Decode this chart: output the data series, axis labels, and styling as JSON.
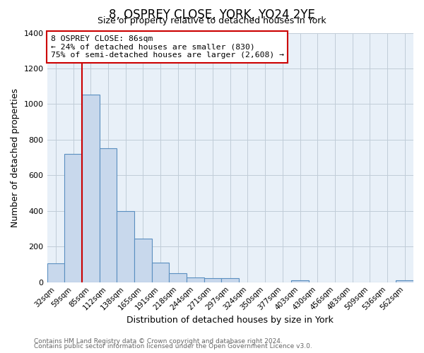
{
  "title": "8, OSPREY CLOSE, YORK, YO24 2YE",
  "subtitle": "Size of property relative to detached houses in York",
  "xlabel": "Distribution of detached houses by size in York",
  "ylabel": "Number of detached properties",
  "bar_labels": [
    "32sqm",
    "59sqm",
    "85sqm",
    "112sqm",
    "138sqm",
    "165sqm",
    "191sqm",
    "218sqm",
    "244sqm",
    "271sqm",
    "297sqm",
    "324sqm",
    "350sqm",
    "377sqm",
    "403sqm",
    "430sqm",
    "456sqm",
    "483sqm",
    "509sqm",
    "536sqm",
    "562sqm"
  ],
  "bar_values": [
    105,
    720,
    1055,
    750,
    400,
    245,
    110,
    50,
    28,
    22,
    22,
    0,
    0,
    0,
    10,
    0,
    0,
    0,
    0,
    0,
    10
  ],
  "bar_color": "#c8d8ec",
  "bar_edge_color": "#5a8fc0",
  "ylim": [
    0,
    1400
  ],
  "yticks": [
    0,
    200,
    400,
    600,
    800,
    1000,
    1200,
    1400
  ],
  "vline_color": "#cc0000",
  "annotation_title": "8 OSPREY CLOSE: 86sqm",
  "annotation_line1": "← 24% of detached houses are smaller (830)",
  "annotation_line2": "75% of semi-detached houses are larger (2,608) →",
  "annotation_box_color": "#ffffff",
  "annotation_box_edge": "#cc0000",
  "footer_line1": "Contains HM Land Registry data © Crown copyright and database right 2024.",
  "footer_line2": "Contains public sector information licensed under the Open Government Licence v3.0.",
  "bg_color": "#ffffff",
  "plot_bg_color": "#e8f0f8",
  "grid_color": "#c0ccd8"
}
